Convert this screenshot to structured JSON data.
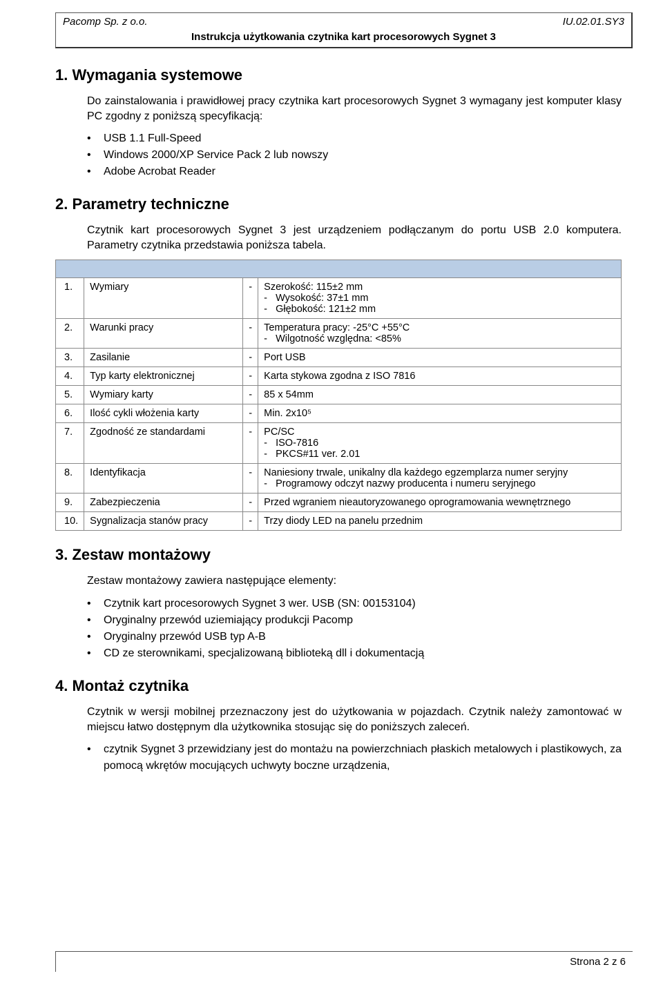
{
  "header": {
    "company": "Pacomp Sp. z o.o.",
    "docid": "IU.02.01.SY3",
    "title": "Instrukcja użytkowania czytnika kart procesorowych Sygnet 3"
  },
  "sections": {
    "s1_title": "1. Wymagania systemowe",
    "s1_intro": "Do zainstalowania i prawidłowej pracy czytnika kart procesorowych Sygnet 3 wymagany jest komputer klasy PC zgodny z poniższą specyfikacją:",
    "s1_bullets": {
      "b0": "USB 1.1 Full-Speed",
      "b1": "Windows 2000/XP Service Pack 2 lub nowszy",
      "b2": "Adobe Acrobat Reader"
    },
    "s2_title": "2. Parametry techniczne",
    "s2_intro": "Czytnik kart procesorowych Sygnet 3 jest urządzeniem podłączanym do portu USB 2.0 komputera. Parametry czytnika przedstawia poniższa tabela.",
    "s3_title": "3. Zestaw montażowy",
    "s3_intro": "Zestaw montażowy zawiera następujące elementy:",
    "s3_bullets": {
      "b0": "Czytnik kart procesorowych Sygnet 3 wer. USB (SN: 00153104)",
      "b1": "Oryginalny przewód uziemiający produkcji Pacomp",
      "b2": "Oryginalny przewód USB typ A-B",
      "b3": "CD ze sterownikami, specjalizowaną biblioteką dll i dokumentacją"
    },
    "s4_title": "4. Montaż czytnika",
    "s4_intro": "Czytnik w wersji mobilnej przeznaczony jest do użytkowania w pojazdach. Czytnik należy zamontować w miejscu łatwo dostępnym dla użytkownika stosując się do poniższych zaleceń.",
    "s4_bullets": {
      "b0": "czytnik Sygnet 3 przewidziany jest do montażu na powierzchniach płaskich metalowych i plastikowych, za pomocą wkrętów mocujących uchwyty boczne urządzenia,"
    }
  },
  "table": {
    "header_color": "#b9cde5",
    "rows": {
      "r1": {
        "num": "1.",
        "name": "Wymiary",
        "v0": "Szerokość: 115±2 mm",
        "v1": "Wysokość: 37±1 mm",
        "v2": "Głębokość: 121±2 mm"
      },
      "r2": {
        "num": "2.",
        "name": "Warunki pracy",
        "v0": "Temperatura pracy: -25°C +55°C",
        "v1": "Wilgotność względna: <85%"
      },
      "r3": {
        "num": "3.",
        "name": "Zasilanie",
        "v0": "Port USB"
      },
      "r4": {
        "num": "4.",
        "name": "Typ karty elektronicznej",
        "v0": "Karta stykowa zgodna z ISO 7816"
      },
      "r5": {
        "num": "5.",
        "name": "Wymiary karty",
        "v0": "85 x  54mm"
      },
      "r6": {
        "num": "6.",
        "name": "Ilość cykli włożenia karty",
        "v0": "Min. 2x10⁵"
      },
      "r7": {
        "num": "7.",
        "name": "Zgodność ze standardami",
        "v0": "PC/SC",
        "v1": "ISO-7816",
        "v2": "PKCS#11 ver. 2.01"
      },
      "r8": {
        "num": "8.",
        "name": "Identyfikacja",
        "v0": "Naniesiony trwale, unikalny dla każdego egzemplarza numer seryjny",
        "v1": "Programowy odczyt nazwy producenta i numeru seryjnego"
      },
      "r9": {
        "num": "9.",
        "name": "Zabezpieczenia",
        "v0": "Przed wgraniem nieautoryzowanego oprogramowania wewnętrznego"
      },
      "r10": {
        "num": "10.",
        "name": "Sygnalizacja stanów pracy",
        "v0": "Trzy diody LED na panelu przednim"
      }
    }
  },
  "footer": {
    "page": "Strona 2 z 6"
  }
}
